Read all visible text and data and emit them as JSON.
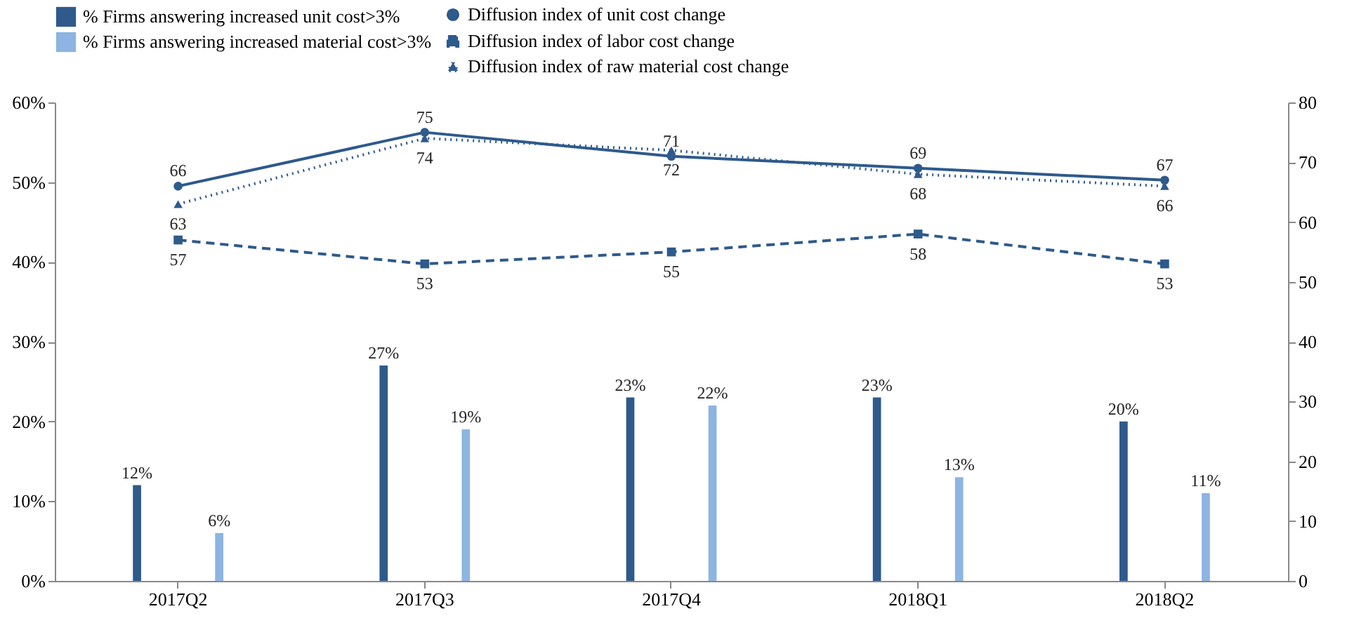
{
  "chart_data": {
    "type": "bar",
    "categories": [
      "2017Q2",
      "2017Q3",
      "2017Q4",
      "2018Q1",
      "2018Q2"
    ],
    "series": [
      {
        "name": "% Firms answering increased unit cost>3%",
        "color": "#2e5a8c",
        "values": [
          12,
          27,
          23,
          23,
          20
        ],
        "value_labels": [
          "12%",
          "27%",
          "23%",
          "23%",
          "20%"
        ]
      },
      {
        "name": "% Firms answering increased material cost>3%",
        "color": "#8db4e2",
        "values": [
          6,
          19,
          22,
          13,
          11
        ],
        "value_labels": [
          "6%",
          "19%",
          "22%",
          "13%",
          "11%"
        ]
      },
      {
        "name": "Diffusion index of unit cost change",
        "type": "line",
        "axis": "y2",
        "color": "#2e5a8c",
        "marker": "circle",
        "line_style": "solid",
        "values": [
          66,
          75,
          71,
          69,
          67
        ],
        "value_labels": [
          "66",
          "75",
          "71",
          "69",
          "67"
        ]
      },
      {
        "name": "Diffusion index of labor cost change",
        "type": "line",
        "axis": "y2",
        "color": "#2e5a8c",
        "marker": "square",
        "line_style": "dashed",
        "values": [
          57,
          53,
          55,
          58,
          53
        ],
        "value_labels": [
          "57",
          "53",
          "55",
          "58",
          "53"
        ]
      },
      {
        "name": "Diffusion index of  raw material cost change",
        "type": "line",
        "axis": "y2",
        "color": "#2e5a8c",
        "marker": "triangle",
        "line_style": "dotted",
        "values": [
          63,
          74,
          72,
          68,
          66
        ],
        "value_labels": [
          "63",
          "74",
          "72",
          "68",
          "66"
        ]
      }
    ],
    "ylim": [
      0,
      60
    ],
    "yticks": [
      {
        "value": 0,
        "label": "0%"
      },
      {
        "value": 10,
        "label": "10%"
      },
      {
        "value": 20,
        "label": "20%"
      },
      {
        "value": 30,
        "label": "30%"
      },
      {
        "value": 40,
        "label": "40%"
      },
      {
        "value": 50,
        "label": "50%"
      },
      {
        "value": 60,
        "label": "60%"
      }
    ],
    "y2lim": [
      0,
      80
    ],
    "y2ticks": [
      0,
      10,
      20,
      30,
      40,
      50,
      60,
      70,
      80
    ],
    "legend": "top"
  }
}
